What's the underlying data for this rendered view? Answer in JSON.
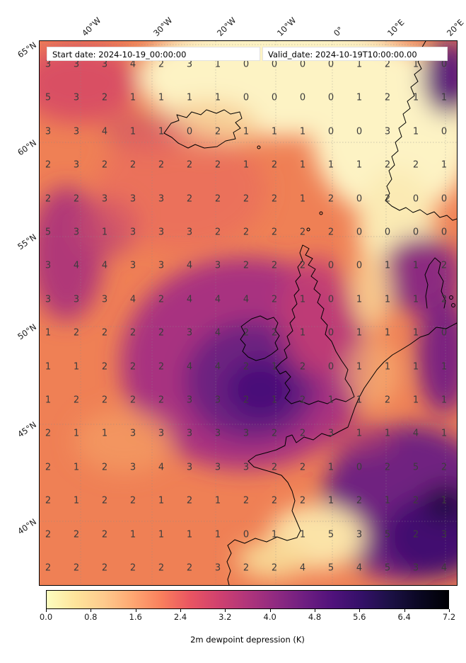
{
  "info_boxes": {
    "start": "Start date: 2024-10-19_00:00:00",
    "valid": "Valid_date: 2024-10-19T10:00:00.00"
  },
  "axes": {
    "top_ticks": [
      "40°W",
      "30°W",
      "20°W",
      "10°W",
      "0°",
      "10°E",
      "20°E"
    ],
    "left_ticks": [
      "65°N",
      "60°N",
      "55°N",
      "50°N",
      "45°N",
      "40°N"
    ]
  },
  "colorbar": {
    "label": "2m dewpoint depression (K)",
    "ticks": [
      "0.0",
      "0.8",
      "1.6",
      "2.4",
      "3.2",
      "4.0",
      "4.8",
      "5.6",
      "6.4",
      "7.2"
    ],
    "min": 0.0,
    "max": 7.2,
    "colormap": "magma_r",
    "colors": [
      "#fcfdbf",
      "#fee49b",
      "#feca8d",
      "#fea772",
      "#f97f5d",
      "#e95562",
      "#d0416f",
      "#b0357b",
      "#8f2a81",
      "#6e1e81",
      "#4f127b",
      "#331067",
      "#1b1044",
      "#0a0722",
      "#000004"
    ]
  },
  "chart_data": {
    "type": "heatmap",
    "title": "2m dewpoint depression (K)",
    "start_date_label": "Start date: 2024-10-19_00:00:00",
    "valid_date_label": "Valid_date: 2024-10-19T10:00:00.00",
    "x_ticks_lon": [
      "40°W",
      "30°W",
      "20°W",
      "10°W",
      "0°",
      "10°E",
      "20°E"
    ],
    "y_ticks_lat": [
      "65°N",
      "60°N",
      "55°N",
      "50°N",
      "45°N",
      "40°N"
    ],
    "value_range": [
      0.0,
      7.2
    ],
    "colorbar_ticks": [
      0.0,
      0.8,
      1.6,
      2.4,
      3.2,
      4.0,
      4.8,
      5.6,
      6.4,
      7.2
    ],
    "region": "North Atlantic / Western Europe",
    "overlay_grid_values": [
      [
        3,
        3,
        3,
        4,
        2,
        3,
        1,
        0,
        0,
        0,
        0,
        1,
        2,
        1,
        0
      ],
      [
        5,
        3,
        2,
        1,
        1,
        1,
        1,
        0,
        0,
        0,
        0,
        1,
        2,
        1,
        1
      ],
      [
        3,
        3,
        4,
        1,
        1,
        0,
        2,
        1,
        1,
        1,
        0,
        0,
        3,
        1,
        0
      ],
      [
        2,
        3,
        2,
        2,
        2,
        2,
        2,
        1,
        2,
        1,
        1,
        1,
        2,
        2,
        1
      ],
      [
        2,
        2,
        3,
        3,
        3,
        2,
        2,
        2,
        2,
        1,
        2,
        0,
        2,
        0,
        0
      ],
      [
        5,
        3,
        1,
        3,
        3,
        3,
        2,
        2,
        2,
        2,
        2,
        0,
        0,
        0,
        0
      ],
      [
        3,
        4,
        4,
        3,
        3,
        4,
        3,
        2,
        2,
        2,
        0,
        0,
        1,
        1,
        2
      ],
      [
        3,
        3,
        3,
        4,
        2,
        4,
        4,
        4,
        2,
        1,
        0,
        1,
        1,
        1,
        2
      ],
      [
        1,
        2,
        2,
        2,
        2,
        3,
        4,
        2,
        2,
        1,
        0,
        1,
        1,
        1,
        0
      ],
      [
        1,
        1,
        2,
        2,
        2,
        4,
        4,
        2,
        1,
        2,
        0,
        1,
        1,
        1,
        1
      ],
      [
        1,
        2,
        2,
        2,
        2,
        3,
        3,
        2,
        1,
        2,
        1,
        1,
        2,
        1,
        1
      ],
      [
        2,
        1,
        1,
        3,
        3,
        3,
        3,
        3,
        2,
        2,
        3,
        1,
        1,
        4,
        1
      ],
      [
        2,
        1,
        2,
        3,
        4,
        3,
        3,
        3,
        2,
        2,
        1,
        0,
        2,
        5,
        2
      ],
      [
        2,
        1,
        2,
        2,
        1,
        2,
        1,
        2,
        2,
        2,
        1,
        2,
        1,
        2,
        1
      ],
      [
        2,
        2,
        2,
        1,
        1,
        1,
        1,
        0,
        1,
        1,
        5,
        3,
        5,
        2,
        3
      ],
      [
        2,
        2,
        2,
        2,
        2,
        2,
        3,
        2,
        2,
        4,
        5,
        4,
        5,
        3,
        4
      ]
    ]
  }
}
